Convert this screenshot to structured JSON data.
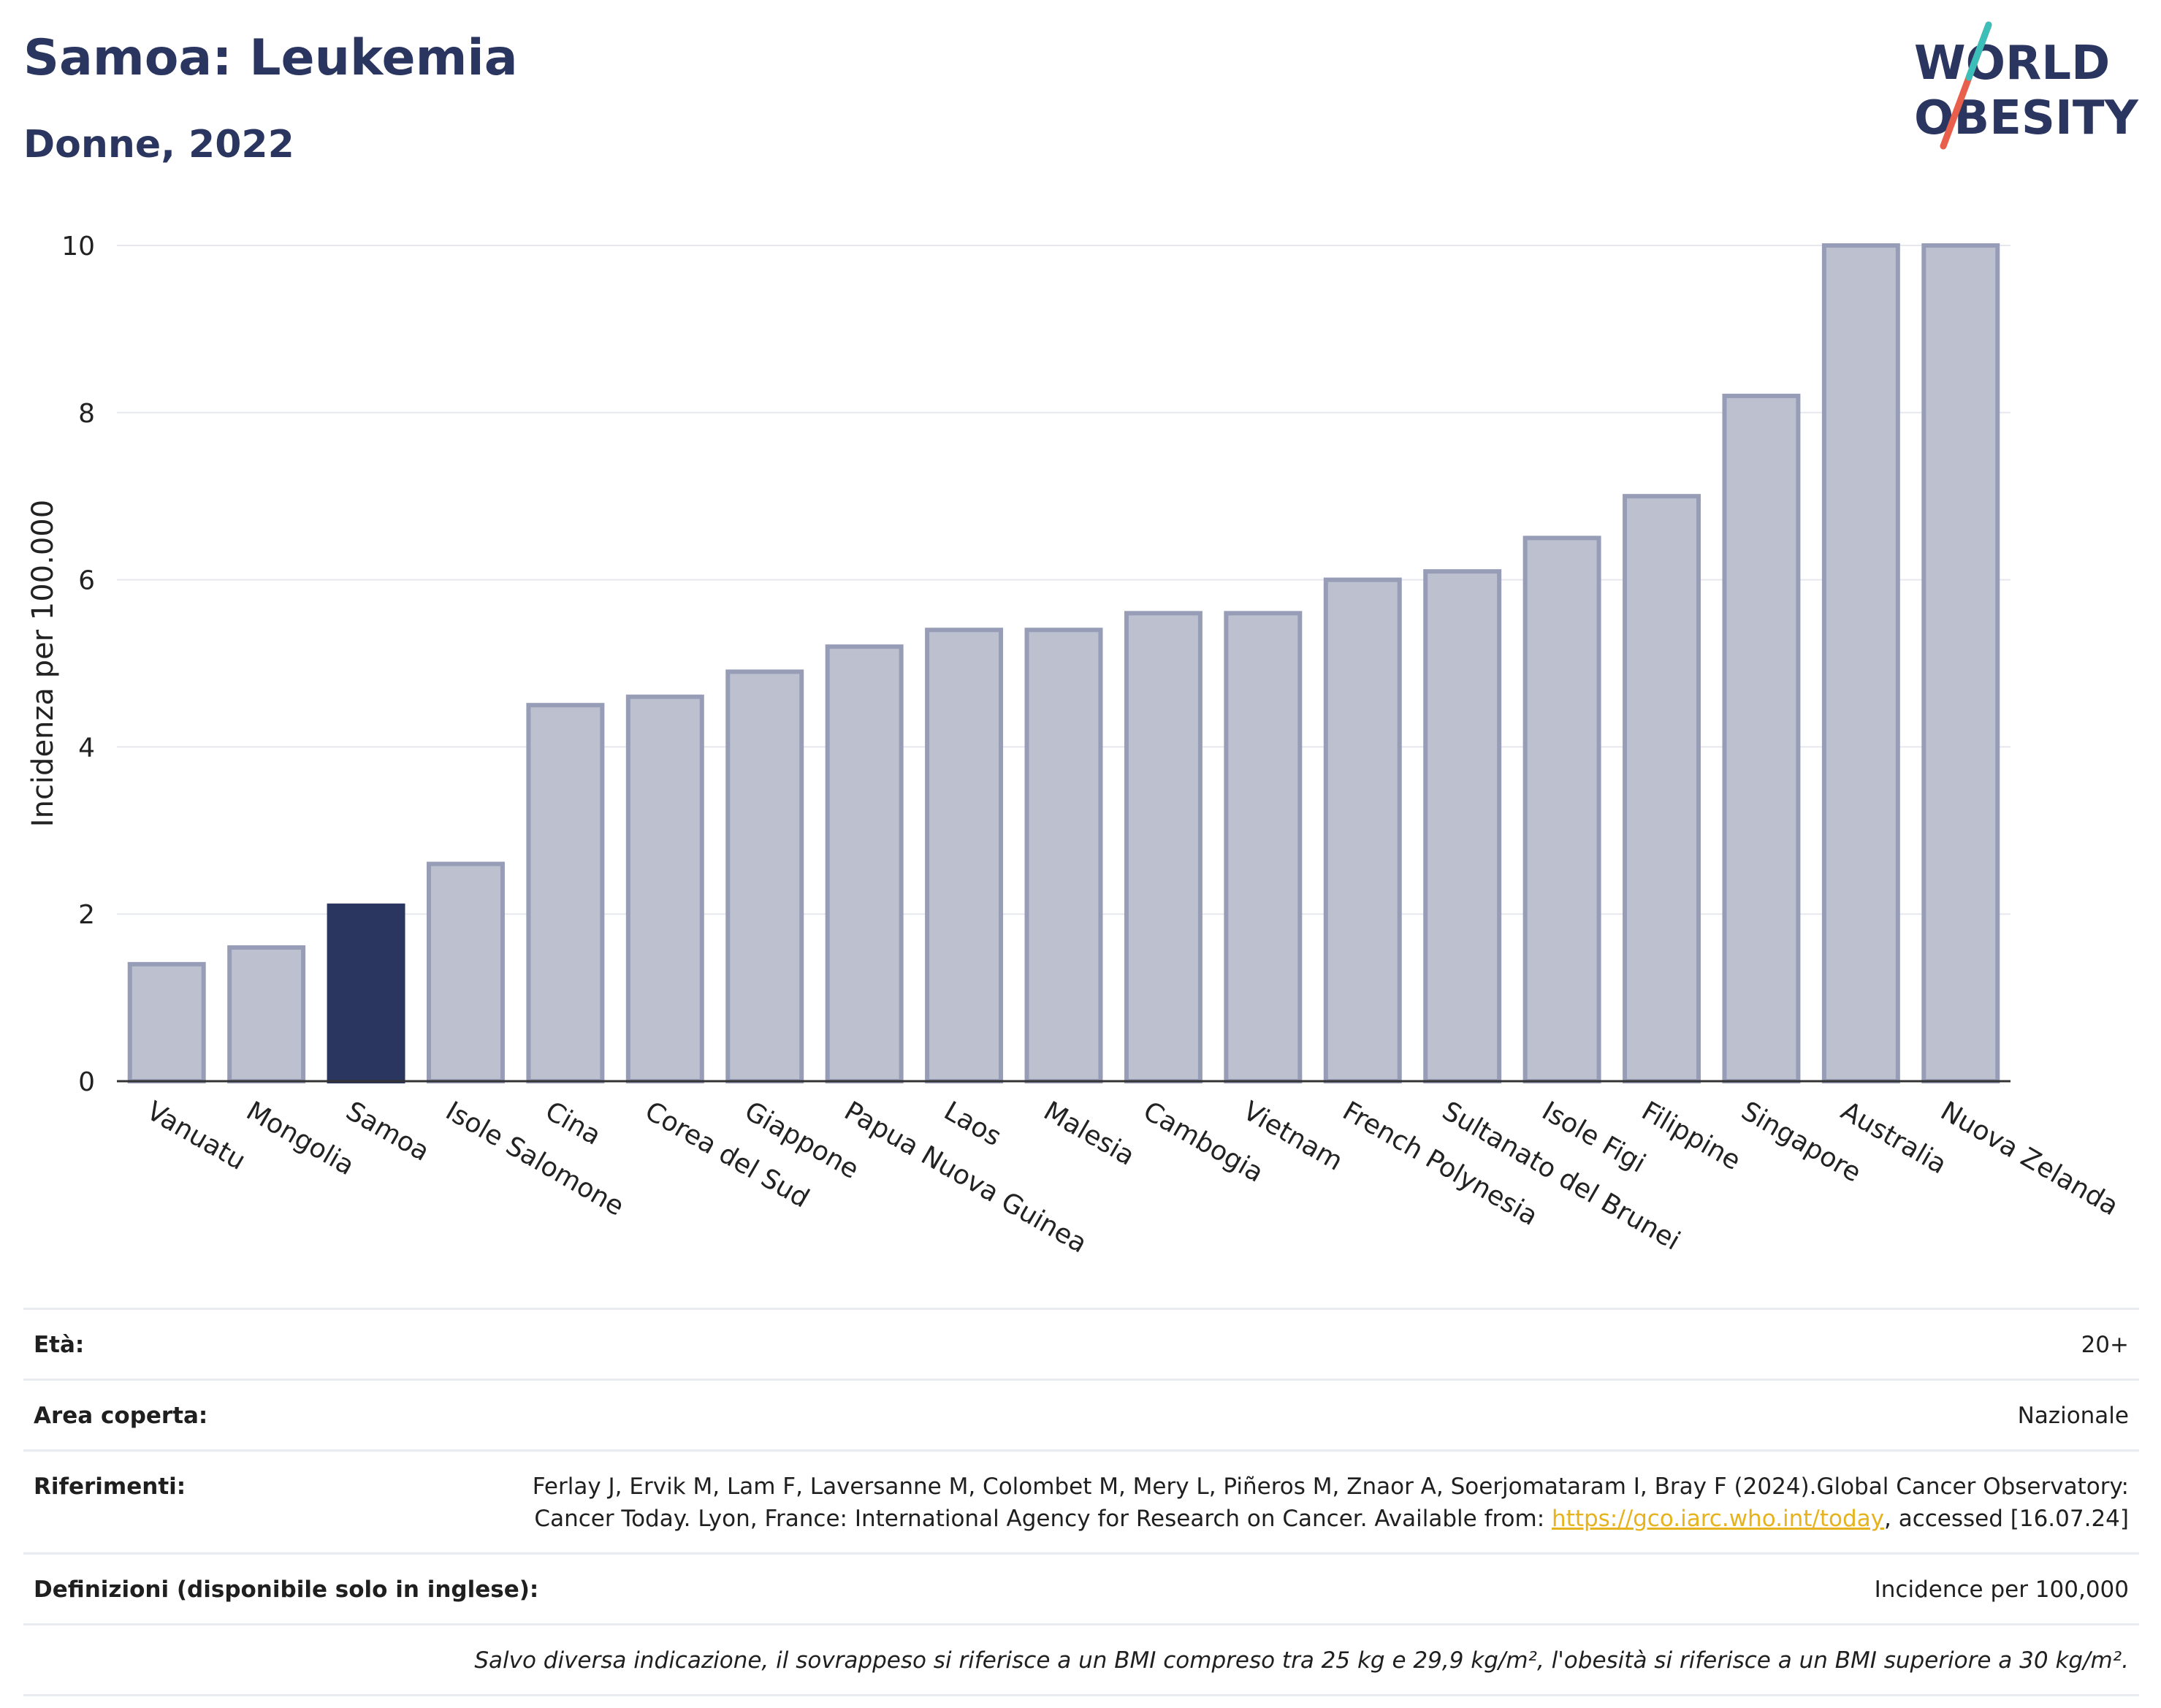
{
  "header": {
    "title": "Samoa: Leukemia",
    "subtitle": "Donne, 2022"
  },
  "logo": {
    "line1": "WORLD",
    "line2": "OBESITY",
    "colors": {
      "navy": "#2b3660",
      "teal": "#3bbfb8",
      "coral": "#e8604c"
    }
  },
  "chart_data": {
    "type": "bar",
    "ylabel": "Incidenza per 100.000",
    "xlabel": "",
    "ylim": [
      0,
      10
    ],
    "yticks": [
      0,
      2,
      4,
      6,
      8,
      10
    ],
    "grid": true,
    "highlight": "Samoa",
    "colors": {
      "bar": "#bcc0cf",
      "bar_edge": "#979db6",
      "highlight": "#2b3660"
    },
    "categories": [
      "Vanuatu",
      "Mongolia",
      "Samoa",
      "Isole Salomone",
      "Cina",
      "Corea del Sud",
      "Giappone",
      "Papua Nuova Guinea",
      "Laos",
      "Malesia",
      "Cambogia",
      "Vietnam",
      "French Polynesia",
      "Sultanato del Brunei",
      "Isole Figi",
      "Filippine",
      "Singapore",
      "Australia",
      "Nuova Zelanda"
    ],
    "values": [
      1.4,
      1.6,
      2.1,
      2.6,
      4.5,
      4.6,
      4.9,
      5.2,
      5.4,
      5.4,
      5.6,
      5.6,
      6.0,
      6.1,
      6.5,
      7.0,
      8.2,
      10.0,
      10.0
    ]
  },
  "info": {
    "age_label": "Età:",
    "age_value": "20+",
    "area_label": "Area coperta:",
    "area_value": "Nazionale",
    "ref_label": "Riferimenti:",
    "ref_text_1": "Ferlay J, Ervik M, Lam F, Laversanne M, Colombet M, Mery L, Piñeros M, Znaor A, Soerjomataram I, Bray F (2024).Global Cancer Observatory: Cancer Today. Lyon, France: International Agency for Research on Cancer. Available from: ",
    "ref_link": "https://gco.iarc.who.int/today",
    "ref_text_2": ", accessed [16.07.24]",
    "def_label": "Definizioni (disponibile solo in inglese):",
    "def_value": "Incidence per 100,000",
    "note": "Salvo diversa indicazione, il sovrappeso si riferisce a un BMI compreso tra 25 kg e 29,9 kg/m², l'obesità si riferisce a un BMI superiore a 30 kg/m²."
  }
}
